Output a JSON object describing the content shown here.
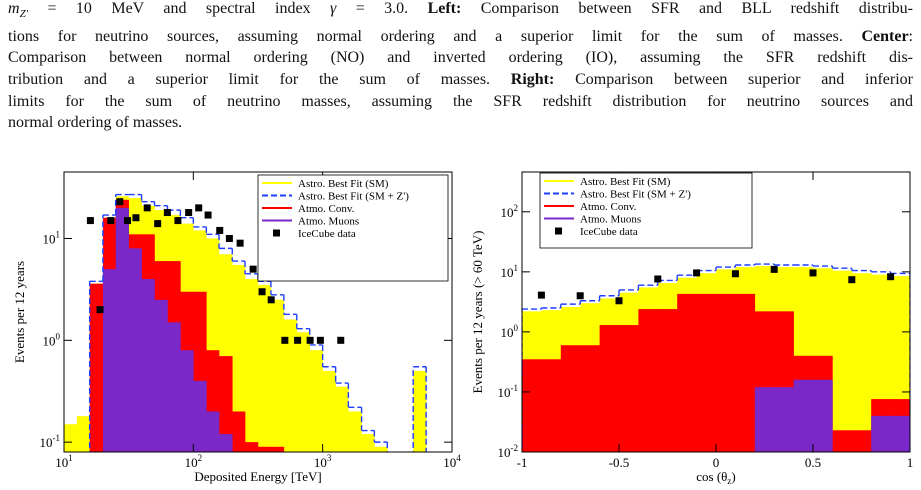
{
  "caption": {
    "lines": [
      [
        {
          "text": "m",
          "style": "italic"
        },
        {
          "text": "Z′",
          "style": "sub"
        },
        {
          "text": " = 10 MeV and spectral index "
        },
        {
          "text": "γ",
          "style": "italic"
        },
        {
          "text": " = 3.0. "
        },
        {
          "text": "Left:",
          "style": "bold"
        },
        {
          "text": " Comparison between SFR and BLL redshift distribu-"
        }
      ],
      [
        {
          "text": "tions for neutrino sources, assuming normal ordering and a superior limit for the sum of masses. "
        },
        {
          "text": "Center",
          "style": "bold"
        },
        {
          "text": ":"
        }
      ],
      [
        {
          "text": "Comparison between normal ordering (NO) and inverted ordering (IO), assuming the SFR redshift dis-"
        }
      ],
      [
        {
          "text": "tribution and a superior limit for the sum of masses. "
        },
        {
          "text": "Right:",
          "style": "bold"
        },
        {
          "text": " Comparison between superior and inferior"
        }
      ],
      [
        {
          "text": "limits for the sum of neutrino masses, assuming the SFR redshift distribution for neutrino sources and"
        }
      ],
      [
        {
          "text": "normal ordering of masses."
        }
      ]
    ]
  },
  "chart_data": [
    {
      "type": "histogram",
      "xlabel": "Deposited Energy [TeV]",
      "ylabel": "Events per 12 years",
      "xscale": "log",
      "yscale": "log",
      "xlim": [
        10,
        10000
      ],
      "ylim": [
        0.08,
        45
      ],
      "xticks": [
        {
          "value": 10,
          "label": "10",
          "exponent": "1"
        },
        {
          "value": 100,
          "label": "10",
          "exponent": "2"
        },
        {
          "value": 1000,
          "label": "10",
          "exponent": "3"
        },
        {
          "value": 10000,
          "label": "10",
          "exponent": "4"
        }
      ],
      "yticks": [
        {
          "value": 0.1,
          "label": "10",
          "exponent": "-1"
        },
        {
          "value": 1,
          "label": "10",
          "exponent": "0"
        },
        {
          "value": 10,
          "label": "10",
          "exponent": "1"
        }
      ],
      "legend": "upper right",
      "bins": [
        10,
        12.6,
        15.8,
        20,
        25.1,
        31.6,
        39.8,
        50.1,
        63.1,
        79.4,
        100,
        126,
        158,
        200,
        251,
        316,
        398,
        501,
        631,
        794,
        1000,
        1260,
        1580,
        2000,
        2510,
        3160,
        3980,
        5010,
        6310,
        7940,
        10000
      ],
      "series": [
        {
          "name": "Astro. Best Fit (SM)",
          "style": "fill",
          "color": "#ffff00",
          "values": [
            0.15,
            0.18,
            3.6,
            16,
            26,
            25,
            21,
            19,
            17,
            14,
            12,
            10,
            7,
            5.5,
            4,
            3.5,
            2.5,
            1.6,
            1.2,
            0.8,
            0.5,
            0.35,
            0.2,
            0.12,
            0.09,
            null,
            null,
            0.5,
            null,
            null
          ]
        },
        {
          "name": "Astro. Best Fit (SM + Z')",
          "style": "dashed",
          "color": "#1f3fff",
          "values": [
            null,
            null,
            3.8,
            17,
            27,
            27,
            23,
            21,
            19,
            16,
            13,
            11,
            8,
            6,
            4.5,
            3.8,
            2.8,
            1.8,
            1.3,
            0.9,
            0.55,
            0.38,
            0.22,
            0.13,
            0.1,
            null,
            null,
            0.55,
            null,
            null
          ]
        },
        {
          "name": "Atmo. Conv.",
          "style": "fill",
          "color": "#ff0000",
          "values": [
            null,
            null,
            3.6,
            16,
            24,
            11,
            11,
            6,
            6,
            3,
            3,
            0.8,
            0.7,
            0.2,
            0.1,
            0.09,
            0.09,
            0.08,
            null,
            null,
            null,
            null,
            null,
            null,
            null,
            null,
            null,
            null,
            null,
            null
          ]
        },
        {
          "name": "Atmo. Muons",
          "style": "fill",
          "color": "#7a28c8",
          "values": [
            null,
            null,
            null,
            5,
            20,
            8,
            4,
            2.5,
            1.5,
            0.8,
            0.4,
            0.2,
            0.12,
            0.08,
            null,
            null,
            null,
            null,
            null,
            null,
            null,
            null,
            null,
            null,
            null,
            null,
            null,
            null,
            null,
            null
          ]
        },
        {
          "name": "IceCube data",
          "style": "marker",
          "color": "#000000",
          "x": [
            16,
            19,
            23,
            27,
            31,
            36,
            44,
            53,
            63,
            76,
            92,
            110,
            130,
            160,
            190,
            230,
            290,
            340,
            400,
            510,
            640,
            800,
            960,
            1380
          ],
          "values": [
            15,
            2.0,
            15,
            23,
            15,
            16,
            20,
            14,
            18,
            15,
            18,
            20,
            17,
            12,
            10,
            9,
            5,
            3,
            2.5,
            1,
            1,
            1,
            1,
            1
          ]
        }
      ]
    },
    {
      "type": "histogram",
      "xlabel": {
        "text": "cos (θ",
        "sub": "z",
        "tail": ")"
      },
      "ylabel": "Events per 12 years (> 60 TeV)",
      "xscale": "linear",
      "yscale": "log",
      "xlim": [
        -1,
        1
      ],
      "ylim": [
        0.01,
        460
      ],
      "xticks": [
        -1,
        -0.5,
        0,
        0.5,
        1
      ],
      "yticks": [
        {
          "value": 0.01,
          "label": "10",
          "exponent": "-2"
        },
        {
          "value": 0.1,
          "label": "10",
          "exponent": "-1"
        },
        {
          "value": 1,
          "label": "10",
          "exponent": "0"
        },
        {
          "value": 10,
          "label": "10",
          "exponent": "1"
        },
        {
          "value": 100,
          "label": "10",
          "exponent": "2"
        }
      ],
      "legend": "upper left",
      "bins": [
        -1,
        -0.9,
        -0.8,
        -0.7,
        -0.6,
        -0.5,
        -0.4,
        -0.3,
        -0.2,
        -0.1,
        0,
        0.1,
        0.2,
        0.3,
        0.4,
        0.5,
        0.6,
        0.7,
        0.8,
        0.9,
        1
      ],
      "series": [
        {
          "name": "Astro. Best Fit  (SM)",
          "style": "fill",
          "color": "#ffff00",
          "values": [
            2.2,
            2.3,
            2.6,
            3,
            3.6,
            4.5,
            5.5,
            6.5,
            8,
            9.5,
            11,
            12,
            12.5,
            12,
            12,
            11.5,
            10.5,
            9.5,
            9,
            8.5
          ]
        },
        {
          "name": "Astro. Best Fit (SM + Z')",
          "style": "dashed",
          "color": "#1f3fff",
          "values": [
            2.4,
            2.5,
            2.9,
            3.3,
            4,
            5,
            6,
            7.2,
            8.8,
            10.5,
            12,
            13,
            13.5,
            13,
            13,
            12.5,
            11.5,
            10.5,
            10,
            9.4
          ]
        },
        {
          "name": "Atmo. Conv.",
          "style": "fill",
          "color": "#ff0000",
          "values": [
            0.35,
            0.35,
            0.6,
            0.6,
            1.3,
            1.3,
            2.4,
            2.4,
            4.3,
            4.3,
            4.3,
            4.3,
            2.2,
            2.2,
            0.4,
            0.4,
            0.023,
            0.023,
            0.076,
            0.076
          ]
        },
        {
          "name": "Atmo. Muons",
          "style": "fill",
          "color": "#7a28c8",
          "values": [
            null,
            null,
            null,
            null,
            null,
            null,
            null,
            null,
            null,
            null,
            null,
            null,
            0.12,
            0.12,
            0.16,
            0.16,
            null,
            null,
            0.04,
            0.04
          ]
        },
        {
          "name": "IceCube data",
          "style": "marker",
          "color": "#000000",
          "x": [
            -0.9,
            -0.7,
            -0.5,
            -0.3,
            -0.1,
            0.1,
            0.3,
            0.5,
            0.7,
            0.9
          ],
          "values": [
            4.1,
            4,
            3.3,
            7.6,
            9.6,
            9.3,
            11,
            9.6,
            7.4,
            8.3
          ]
        }
      ]
    }
  ]
}
